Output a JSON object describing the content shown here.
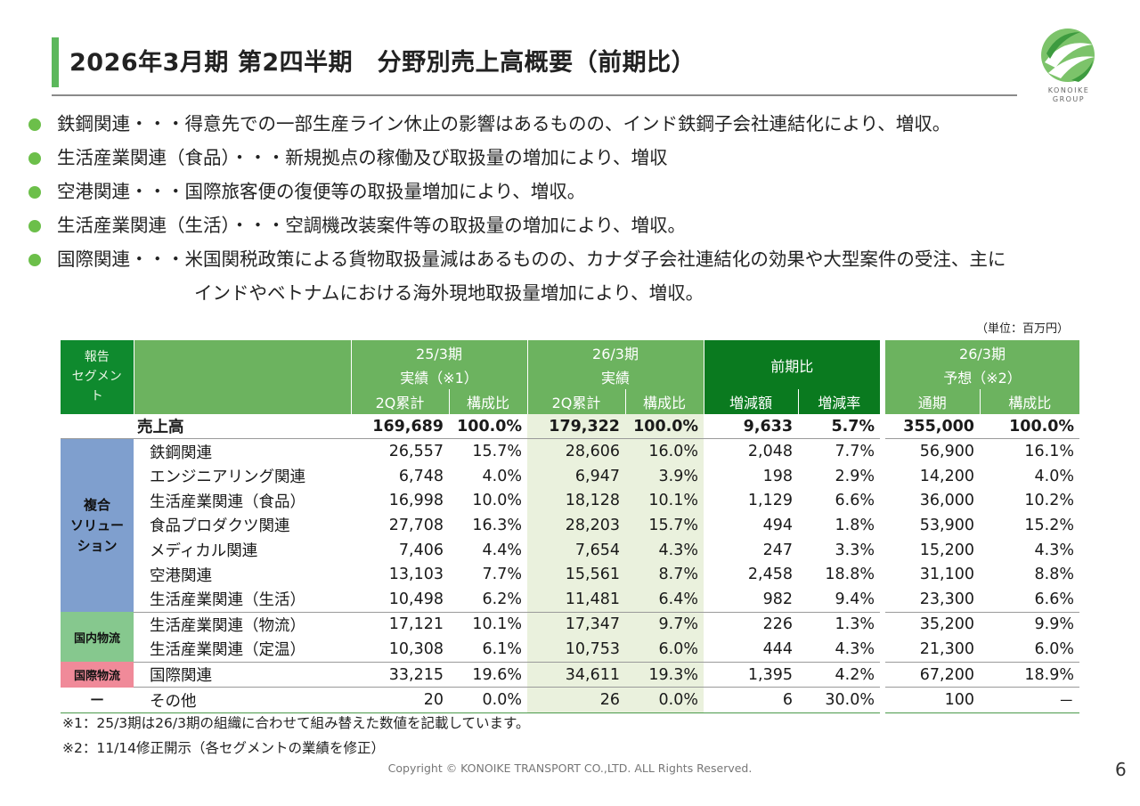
{
  "header": {
    "title": "2026年3月期 第2四半期　分野別売上高概要（前期比）",
    "logo_text_1": "KONOIKE",
    "logo_text_2": "GROUP"
  },
  "bullets": [
    {
      "text": "鉄鋼関連・・・得意先での一部生産ライン休止の影響はあるものの、インド鉄鋼子会社連結化により、増収。"
    },
    {
      "text": "生活産業関連（食品）・・・新規拠点の稼働及び取扱量の増加により、増収"
    },
    {
      "text": "空港関連・・・国際旅客便の復便等の取扱量増加により、増収。"
    },
    {
      "text": "生活産業関連（生活）・・・空調機改装案件等の取扱量の増加により、増収。"
    },
    {
      "text": "国際関連・・・米国関税政策による貨物取扱量減はあるものの、カナダ子会社連結化の効果や大型案件の受注、主に",
      "cont": "インドやベトナムにおける海外現地取扱量増加により、増収。"
    }
  ],
  "table": {
    "unit": "（単位：百万円）",
    "seg_header": [
      "報告",
      "セグメン",
      "ト"
    ],
    "col_25_1": "25/3期",
    "col_25_2": "実績（※1）",
    "col_26_1": "26/3期",
    "col_26_2": "実績",
    "col_yoy": "前期比",
    "col_fc_1": "26/3期",
    "col_fc_2": "予想（※2）",
    "sub": [
      "2Q累計",
      "構成比",
      "2Q累計",
      "構成比",
      "増減額",
      "増減率",
      "通期",
      "構成比"
    ],
    "sales": {
      "label": "売上高",
      "v": [
        "169,689",
        "100.0%",
        "179,322",
        "100.0%",
        "9,633",
        "5.7%",
        "355,000",
        "100.0%"
      ]
    },
    "segments": {
      "fukugo": [
        "複合",
        "ソリュー",
        "ション"
      ],
      "kokunai": "国内物流",
      "kokusai": "国際物流",
      "other": "－"
    },
    "rows": [
      {
        "label": "鉄鋼関連",
        "v": [
          "26,557",
          "15.7%",
          "28,606",
          "16.0%",
          "2,048",
          "7.7%",
          "56,900",
          "16.1%"
        ]
      },
      {
        "label": "エンジニアリング関連",
        "v": [
          "6,748",
          "4.0%",
          "6,947",
          "3.9%",
          "198",
          "2.9%",
          "14,200",
          "4.0%"
        ]
      },
      {
        "label": "生活産業関連（食品）",
        "v": [
          "16,998",
          "10.0%",
          "18,128",
          "10.1%",
          "1,129",
          "6.6%",
          "36,000",
          "10.2%"
        ]
      },
      {
        "label": "食品プロダクツ関連",
        "v": [
          "27,708",
          "16.3%",
          "28,203",
          "15.7%",
          "494",
          "1.8%",
          "53,900",
          "15.2%"
        ]
      },
      {
        "label": "メディカル関連",
        "v": [
          "7,406",
          "4.4%",
          "7,654",
          "4.3%",
          "247",
          "3.3%",
          "15,200",
          "4.3%"
        ]
      },
      {
        "label": "空港関連",
        "v": [
          "13,103",
          "7.7%",
          "15,561",
          "8.7%",
          "2,458",
          "18.8%",
          "31,100",
          "8.8%"
        ]
      },
      {
        "label": "生活産業関連（生活）",
        "v": [
          "10,498",
          "6.2%",
          "11,481",
          "6.4%",
          "982",
          "9.4%",
          "23,300",
          "6.6%"
        ]
      },
      {
        "label": "生活産業関連（物流）",
        "v": [
          "17,121",
          "10.1%",
          "17,347",
          "9.7%",
          "226",
          "1.3%",
          "35,200",
          "9.9%"
        ]
      },
      {
        "label": "生活産業関連（定温）",
        "v": [
          "10,308",
          "6.1%",
          "10,753",
          "6.0%",
          "444",
          "4.3%",
          "21,300",
          "6.0%"
        ]
      },
      {
        "label": "国際関連",
        "v": [
          "33,215",
          "19.6%",
          "34,611",
          "19.3%",
          "1,395",
          "4.2%",
          "67,200",
          "18.9%"
        ]
      },
      {
        "label": "その他",
        "v": [
          "20",
          "0.0%",
          "26",
          "0.0%",
          "6",
          "30.0%",
          "100",
          "－"
        ]
      }
    ]
  },
  "notes": {
    "n1": "※1：25/3期は26/3期の組織に合わせて組み替えた数値を記載しています。",
    "n2": "※2：11/14修正開示（各セグメントの業績を修正）"
  },
  "footer": {
    "copyright": "Copyright © KONOIKE TRANSPORT CO.,LTD.  ALL Rights Reserved.",
    "page": "6"
  },
  "colors": {
    "accent_green": "#5cb85c",
    "header_green": "#6cb35f",
    "dark_green": "#0a7a1f",
    "shade": "#eaf1dd",
    "seg_blue": "#7f9fce",
    "seg_green": "#86c88e",
    "seg_pink": "#f08a99"
  }
}
